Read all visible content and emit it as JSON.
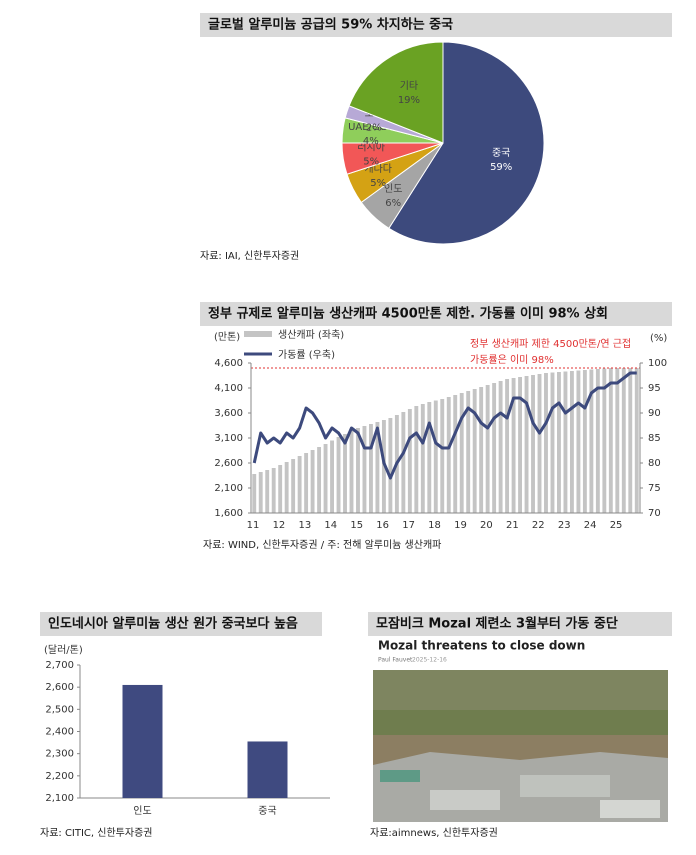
{
  "chart_data": [
    {
      "type": "pie",
      "title": "글로벌 알루미늄 공급의 59% 차지하는 중국",
      "source": "자료: IAI, 신한투자증권",
      "categories": [
        "중국",
        "인도",
        "캐나다",
        "러시아",
        "UAE/GCC",
        "호주",
        "기타"
      ],
      "values": [
        59,
        6,
        5,
        5,
        4,
        2,
        19
      ],
      "value_labels": [
        "59%",
        "6%",
        "5%",
        "5%",
        "4%",
        "2%",
        "19%"
      ],
      "colors": [
        "#3d4a7d",
        "#a5a5a5",
        "#d4a214",
        "#f25757",
        "#8fce5b",
        "#b7a9d6",
        "#6aa223"
      ]
    },
    {
      "type": "combo",
      "title": "정부 규제로 알루미늄 생산캐파 4500만톤 제한. 가동률 이미 98% 상회",
      "source": "자료: WIND, 신한투자증권   / 주: 전해 알루미늄 생산캐파",
      "y_label": "(만톤)",
      "y2_label": "(%)",
      "annotation": [
        "정부 생산캐파 제한 4500만톤/연 근접",
        "가동률은 이미 98%"
      ],
      "reference_y": 4500,
      "reference_color": "#e03030",
      "categories": [
        "11",
        null,
        null,
        null,
        "12",
        null,
        null,
        null,
        "13",
        null,
        null,
        null,
        "14",
        null,
        null,
        null,
        "15",
        null,
        null,
        null,
        "16",
        null,
        null,
        null,
        "17",
        null,
        null,
        null,
        "18",
        null,
        null,
        null,
        "19",
        null,
        null,
        null,
        "20",
        null,
        null,
        null,
        "21",
        null,
        null,
        null,
        "22",
        null,
        null,
        null,
        "23",
        null,
        null,
        null,
        "24",
        null,
        null,
        null,
        "25",
        null,
        null,
        null
      ],
      "ylim": [
        1600,
        4600
      ],
      "yticks": [
        {
          "value": 1600,
          "label": "1,600"
        },
        {
          "value": 2100,
          "label": "2,100"
        },
        {
          "value": 2600,
          "label": "2,600"
        },
        {
          "value": 3100,
          "label": "3,100"
        },
        {
          "value": 3600,
          "label": "3,600"
        },
        {
          "value": 4100,
          "label": "4,100"
        },
        {
          "value": 4600,
          "label": "4,600"
        }
      ],
      "y2lim": [
        70,
        100
      ],
      "y2ticks": [
        70,
        75,
        80,
        85,
        90,
        95,
        100
      ],
      "series": [
        {
          "name": "생산캐파 (좌축)",
          "type": "bar",
          "color": "#c4c4c4",
          "values": [
            2380,
            2420,
            2460,
            2500,
            2560,
            2620,
            2680,
            2740,
            2800,
            2860,
            2920,
            2980,
            3050,
            3120,
            3180,
            3250,
            3300,
            3340,
            3380,
            3420,
            3460,
            3500,
            3560,
            3620,
            3680,
            3740,
            3780,
            3820,
            3850,
            3880,
            3920,
            3960,
            4000,
            4040,
            4080,
            4120,
            4160,
            4200,
            4240,
            4280,
            4300,
            4320,
            4340,
            4360,
            4380,
            4400,
            4410,
            4420,
            4430,
            4440,
            4450,
            4460,
            4470,
            4480,
            4490,
            4500,
            4500,
            4500,
            4500,
            4500
          ]
        },
        {
          "name": "가동률 (우축)",
          "type": "line",
          "axis": "y2",
          "color": "#3d4a7d",
          "values": [
            80,
            86,
            84,
            85,
            84,
            86,
            85,
            87,
            91,
            90,
            88,
            85,
            87,
            86,
            84,
            87,
            86,
            83,
            83,
            87,
            80,
            77,
            80,
            82,
            85,
            86,
            84,
            88,
            84,
            83,
            83,
            86,
            89,
            91,
            90,
            88,
            87,
            89,
            90,
            89,
            93,
            93,
            92,
            88,
            86,
            88,
            91,
            92,
            90,
            91,
            92,
            91,
            94,
            95,
            95,
            96,
            96,
            97,
            98,
            98
          ]
        }
      ]
    },
    {
      "type": "bar",
      "title": "인도네시아 알루미늄 생산 원가 중국보다 높음",
      "source": "자료: CITIC, 신한투자증권",
      "y_label": "(달러/톤)",
      "categories": [
        "인도",
        "중국"
      ],
      "values": [
        2610,
        2355
      ],
      "color": "#3f4a80",
      "ylim": [
        2100,
        2700
      ],
      "yticks": [
        {
          "value": 2100,
          "label": "2,100"
        },
        {
          "value": 2200,
          "label": "2,200"
        },
        {
          "value": 2300,
          "label": "2,300"
        },
        {
          "value": 2400,
          "label": "2,400"
        },
        {
          "value": 2500,
          "label": "2,500"
        },
        {
          "value": 2600,
          "label": "2,600"
        },
        {
          "value": 2700,
          "label": "2,700"
        }
      ]
    }
  ],
  "news": {
    "title": "모잠비크 Mozal 제련소 3월부터 가동 중단",
    "headline": "Mozal threatens to close down",
    "author": "Paul Fauvet",
    "date": "2025-12-16",
    "source": "자료:aimnews, 신한투자증권"
  }
}
